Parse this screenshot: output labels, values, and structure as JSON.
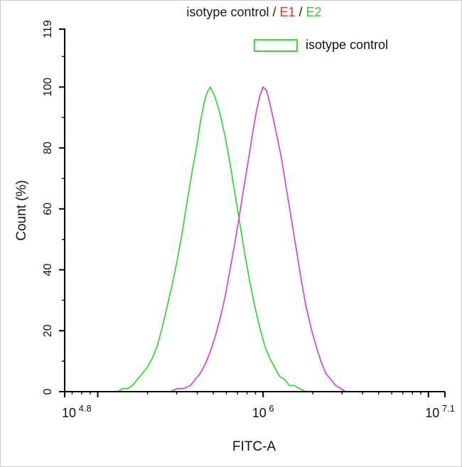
{
  "figure": {
    "title_parts": [
      {
        "text": "isotype control / ",
        "color": "#1a1a1a"
      },
      {
        "text": "E1",
        "color": "#e8342b"
      },
      {
        "text": " / ",
        "color": "#1a1a1a"
      },
      {
        "text": "E2",
        "color": "#3cc53c"
      }
    ]
  },
  "chart_data": {
    "type": "line",
    "title": "isotype control / E1 / E2",
    "xlabel": "FITC-A",
    "ylabel": "Count (%)",
    "x_scale": "log10",
    "xlim_log10": [
      4.8,
      7.1
    ],
    "ylim": [
      0,
      119
    ],
    "grid": false,
    "y_major_ticks": [
      0,
      20,
      40,
      60,
      80,
      100
    ],
    "y_minor_step": 10,
    "y_top_label": 119,
    "x_tick_labels": [
      {
        "base": "10",
        "exp": "4.8",
        "log10": 4.8
      },
      {
        "base": "10",
        "exp": "6",
        "log10": 6
      },
      {
        "base": "10",
        "exp": "7.1",
        "log10": 7.1
      }
    ],
    "legend": {
      "position": "top-right",
      "entries": [
        {
          "label": "isotype control",
          "color": "#3fd23f"
        }
      ]
    },
    "series": [
      {
        "name": "isotype control",
        "color": "#3fd23f",
        "points_log10x_y": [
          [
            5.08,
            0
          ],
          [
            5.12,
            0
          ],
          [
            5.15,
            1
          ],
          [
            5.18,
            1
          ],
          [
            5.21,
            2
          ],
          [
            5.24,
            4
          ],
          [
            5.27,
            6
          ],
          [
            5.3,
            8
          ],
          [
            5.33,
            11
          ],
          [
            5.36,
            15
          ],
          [
            5.39,
            21
          ],
          [
            5.42,
            28
          ],
          [
            5.45,
            35
          ],
          [
            5.48,
            43
          ],
          [
            5.51,
            52
          ],
          [
            5.54,
            62
          ],
          [
            5.57,
            72
          ],
          [
            5.6,
            81
          ],
          [
            5.62,
            88
          ],
          [
            5.64,
            94
          ],
          [
            5.66,
            98
          ],
          [
            5.68,
            100
          ],
          [
            5.7,
            98
          ],
          [
            5.72,
            95
          ],
          [
            5.74,
            91
          ],
          [
            5.77,
            84
          ],
          [
            5.8,
            75
          ],
          [
            5.83,
            65
          ],
          [
            5.86,
            55
          ],
          [
            5.89,
            45
          ],
          [
            5.92,
            36
          ],
          [
            5.95,
            28
          ],
          [
            5.98,
            21
          ],
          [
            6.01,
            15
          ],
          [
            6.04,
            11
          ],
          [
            6.07,
            8
          ],
          [
            6.1,
            5
          ],
          [
            6.13,
            4
          ],
          [
            6.16,
            2
          ],
          [
            6.19,
            2
          ],
          [
            6.22,
            1
          ],
          [
            6.26,
            0
          ],
          [
            6.3,
            0
          ]
        ]
      },
      {
        "name": "E1",
        "color": "#cf4ccf",
        "points_log10x_y": [
          [
            5.44,
            0
          ],
          [
            5.48,
            1
          ],
          [
            5.52,
            1
          ],
          [
            5.56,
            2
          ],
          [
            5.59,
            4
          ],
          [
            5.62,
            6
          ],
          [
            5.65,
            9
          ],
          [
            5.68,
            13
          ],
          [
            5.71,
            18
          ],
          [
            5.74,
            24
          ],
          [
            5.77,
            31
          ],
          [
            5.8,
            40
          ],
          [
            5.83,
            49
          ],
          [
            5.86,
            59
          ],
          [
            5.89,
            69
          ],
          [
            5.92,
            79
          ],
          [
            5.94,
            86
          ],
          [
            5.96,
            92
          ],
          [
            5.98,
            97
          ],
          [
            6.0,
            100
          ],
          [
            6.02,
            99
          ],
          [
            6.04,
            95
          ],
          [
            6.06,
            90
          ],
          [
            6.08,
            85
          ],
          [
            6.11,
            77
          ],
          [
            6.14,
            67
          ],
          [
            6.17,
            57
          ],
          [
            6.2,
            47
          ],
          [
            6.23,
            37
          ],
          [
            6.26,
            28
          ],
          [
            6.29,
            21
          ],
          [
            6.32,
            15
          ],
          [
            6.35,
            10
          ],
          [
            6.38,
            6
          ],
          [
            6.41,
            4
          ],
          [
            6.44,
            2
          ],
          [
            6.47,
            1
          ],
          [
            6.5,
            0
          ],
          [
            6.54,
            0
          ]
        ]
      }
    ]
  }
}
